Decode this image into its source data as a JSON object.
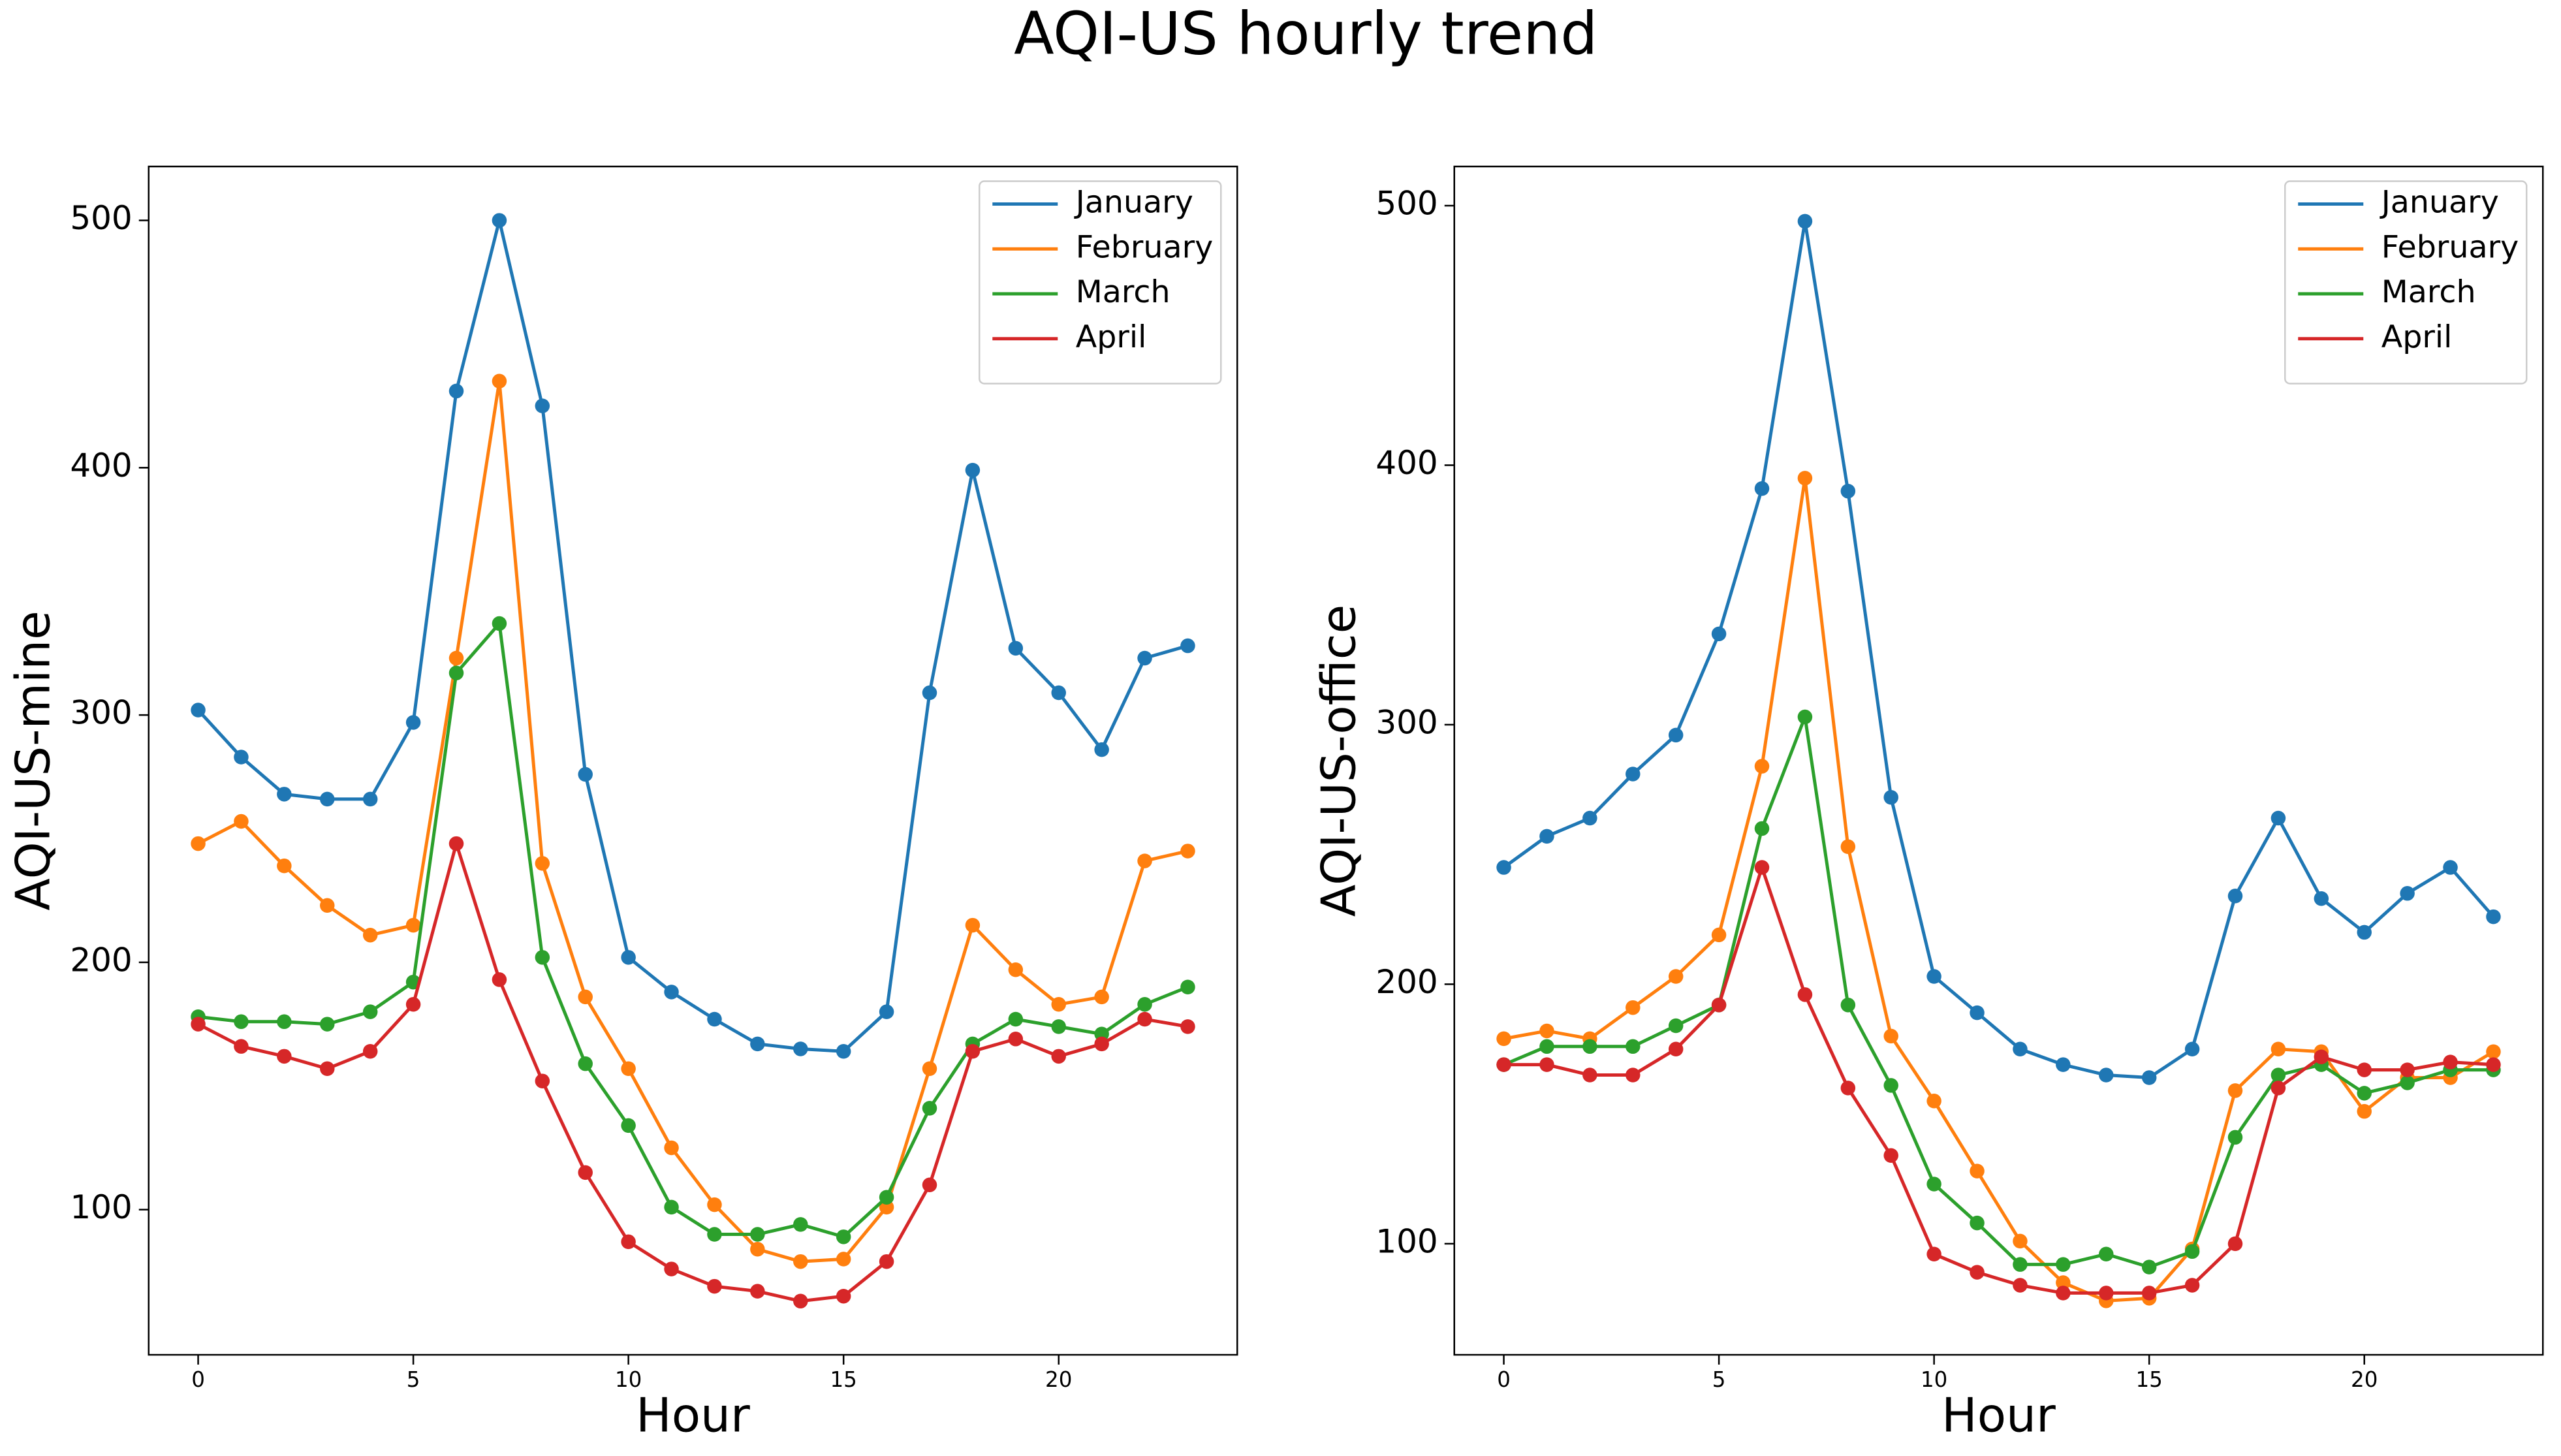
{
  "title": "AQI-US hourly trend",
  "chart_data": [
    {
      "type": "line",
      "xlabel": "Hour",
      "ylabel": "AQI-US-mine",
      "x": [
        0,
        1,
        2,
        3,
        4,
        5,
        6,
        7,
        8,
        9,
        10,
        11,
        12,
        13,
        14,
        15,
        16,
        17,
        18,
        19,
        20,
        21,
        22,
        23
      ],
      "xlim": [
        -1.15,
        24.15
      ],
      "ylim": [
        41.3,
        521.8
      ],
      "xticks": [
        0,
        5,
        10,
        15,
        20
      ],
      "yticks": [
        100,
        200,
        300,
        400,
        500
      ],
      "marker": "o",
      "legend": "upper right",
      "grid": false,
      "series": [
        {
          "name": "January",
          "color": "#1f77b4",
          "values": [
            302,
            283,
            268,
            266,
            266,
            297,
            431,
            500,
            425,
            276,
            202,
            188,
            177,
            167,
            165,
            164,
            180,
            309,
            399,
            327,
            309,
            286,
            323,
            328
          ]
        },
        {
          "name": "February",
          "color": "#ff7f0e",
          "values": [
            248,
            257,
            239,
            223,
            211,
            215,
            323,
            435,
            240,
            186,
            157,
            125,
            102,
            84,
            79,
            80,
            101,
            157,
            215,
            197,
            183,
            186,
            241,
            245
          ]
        },
        {
          "name": "March",
          "color": "#2ca02c",
          "values": [
            178,
            176,
            176,
            175,
            180,
            192,
            317,
            337,
            202,
            159,
            134,
            101,
            90,
            90,
            94,
            89,
            105,
            141,
            167,
            177,
            174,
            171,
            183,
            190
          ]
        },
        {
          "name": "April",
          "color": "#d62728",
          "values": [
            175,
            166,
            162,
            157,
            164,
            183,
            248,
            193,
            152,
            115,
            87,
            76,
            69,
            67,
            63,
            65,
            79,
            110,
            164,
            169,
            162,
            167,
            177,
            174
          ]
        }
      ]
    },
    {
      "type": "line",
      "xlabel": "Hour",
      "ylabel": "AQI-US-office",
      "x": [
        0,
        1,
        2,
        3,
        4,
        5,
        6,
        7,
        8,
        9,
        10,
        11,
        12,
        13,
        14,
        15,
        16,
        17,
        18,
        19,
        20,
        21,
        22,
        23
      ],
      "xlim": [
        -1.15,
        24.15
      ],
      "ylim": [
        57.2,
        515.1
      ],
      "xticks": [
        0,
        5,
        10,
        15,
        20
      ],
      "yticks": [
        100,
        200,
        300,
        400,
        500
      ],
      "marker": "o",
      "legend": "upper right",
      "grid": false,
      "series": [
        {
          "name": "January",
          "color": "#1f77b4",
          "values": [
            245,
            257,
            264,
            281,
            296,
            335,
            391,
            494,
            390,
            272,
            203,
            189,
            175,
            169,
            165,
            164,
            175,
            234,
            264,
            233,
            220,
            235,
            245,
            226
          ]
        },
        {
          "name": "February",
          "color": "#ff7f0e",
          "values": [
            179,
            182,
            179,
            191,
            203,
            219,
            284,
            395,
            253,
            180,
            155,
            128,
            101,
            85,
            78,
            79,
            98,
            159,
            175,
            174,
            151,
            164,
            164,
            174
          ]
        },
        {
          "name": "March",
          "color": "#2ca02c",
          "values": [
            169,
            176,
            176,
            176,
            184,
            192,
            260,
            303,
            192,
            161,
            123,
            108,
            92,
            92,
            96,
            91,
            97,
            141,
            165,
            169,
            158,
            162,
            167,
            167
          ]
        },
        {
          "name": "April",
          "color": "#d62728",
          "values": [
            169,
            169,
            165,
            165,
            175,
            192,
            245,
            196,
            160,
            134,
            96,
            89,
            84,
            81,
            81,
            81,
            84,
            100,
            160,
            172,
            167,
            167,
            170,
            169
          ]
        }
      ]
    }
  ]
}
